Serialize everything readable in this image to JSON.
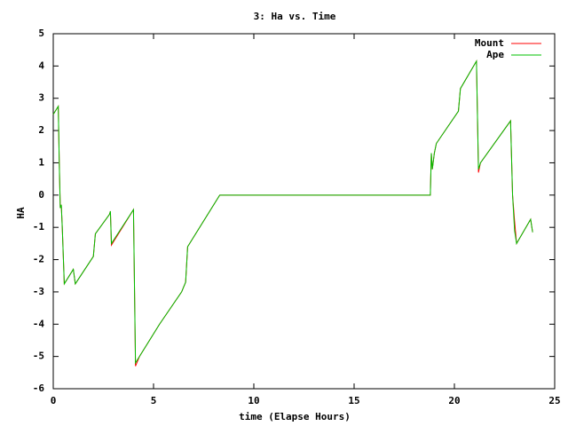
{
  "chart_data": {
    "type": "line",
    "title": "3: Ha vs. Time",
    "x_label": "time (Elapse Hours)",
    "y_label": "HA",
    "x": [
      0,
      0.2,
      0.25,
      0.3,
      0.32,
      0.35,
      0.4,
      0.45,
      0.55,
      1.0,
      1.1,
      2.0,
      2.1,
      2.8,
      2.85,
      2.9,
      4.0,
      4.1,
      4.3,
      5.3,
      6.4,
      6.6,
      6.7,
      8.3,
      18.8,
      18.85,
      18.9,
      19.0,
      19.1,
      20.2,
      20.3,
      21.1,
      21.2,
      21.3,
      22.8,
      22.9,
      23.0,
      23.1,
      23.8,
      23.9
    ],
    "series": [
      {
        "name": "Mount",
        "color": "#ff0000",
        "values": [
          2.5,
          2.7,
          2.75,
          1.0,
          0.5,
          -0.4,
          -0.3,
          -1.0,
          -2.75,
          -2.3,
          -2.75,
          -1.9,
          -1.2,
          -0.6,
          -0.5,
          -1.55,
          -0.45,
          -5.3,
          -5.0,
          -4.0,
          -3.0,
          -2.7,
          -1.6,
          0,
          0,
          1.3,
          0.8,
          1.3,
          1.6,
          2.6,
          3.3,
          4.15,
          0.7,
          1.0,
          2.3,
          0,
          -0.8,
          -1.5,
          -0.75,
          -1.15
        ]
      },
      {
        "name": "Ape",
        "color": "#00c000",
        "values": [
          2.5,
          2.7,
          2.75,
          1.0,
          0.4,
          -0.4,
          -0.3,
          -1.0,
          -2.75,
          -2.3,
          -2.75,
          -1.9,
          -1.2,
          -0.6,
          -0.5,
          -1.5,
          -0.45,
          -5.2,
          -5.0,
          -4.0,
          -3.0,
          -2.7,
          -1.6,
          0,
          0,
          1.3,
          0.8,
          1.3,
          1.6,
          2.6,
          3.3,
          4.15,
          0.8,
          1.0,
          2.3,
          0,
          -1.1,
          -1.5,
          -0.75,
          -1.15
        ]
      }
    ],
    "xlim": [
      0,
      25
    ],
    "xticks": [
      0,
      5,
      10,
      15,
      20,
      25
    ],
    "ylim": [
      -6,
      5
    ],
    "yticks": [
      -6,
      -5,
      -4,
      -3,
      -2,
      -1,
      0,
      1,
      2,
      3,
      4,
      5
    ],
    "grid": false,
    "legend": "top-right"
  }
}
